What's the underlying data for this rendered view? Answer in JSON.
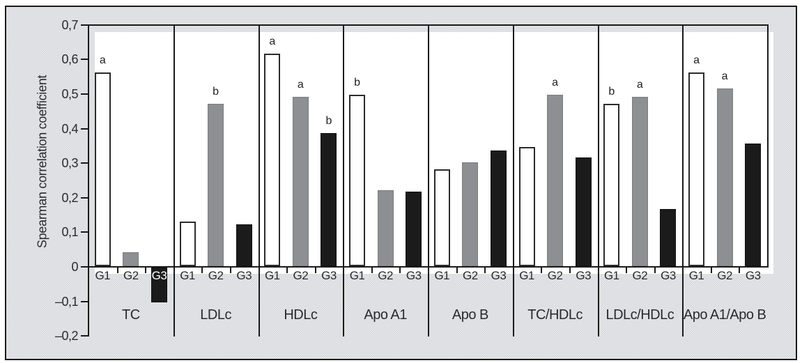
{
  "figure": {
    "kind": "grouped-bar-figure",
    "background_hex": "#d6d8db",
    "plot_background_hex": "#ffffff",
    "line_hex": "#1a1a1a"
  },
  "chart_data": {
    "type": "bar",
    "title": "",
    "xlabel": "",
    "ylabel": "Spearman correlation coefficient",
    "ylim": [
      -0.2,
      0.7
    ],
    "ytick_step": 0.1,
    "yticks": [
      0.7,
      0.6,
      0.5,
      0.4,
      0.3,
      0.2,
      0.1,
      0,
      -0.1,
      -0.2
    ],
    "ytick_labels": [
      "0,7",
      "0,6",
      "0,5",
      "0,4",
      "0,3",
      "0,2",
      "0,1",
      "0",
      "–0,1",
      "–0,2"
    ],
    "decimal_separator": ",",
    "grid": "off",
    "legend": "none",
    "series_names": [
      "G1",
      "G2",
      "G3"
    ],
    "series_colors": [
      {
        "name": "G1",
        "color": "#ffffff"
      },
      {
        "name": "G2",
        "color": "#8e8f93"
      },
      {
        "name": "G3",
        "color": "#1b1b1b"
      }
    ],
    "annotation_meaning": "significance letters shown above some bars",
    "groups": [
      {
        "label": "TC",
        "values": [
          0.56,
          0.04,
          -0.1
        ],
        "letters": [
          "a",
          "",
          ""
        ]
      },
      {
        "label": "LDLc",
        "values": [
          0.13,
          0.47,
          0.12
        ],
        "letters": [
          "",
          "b",
          ""
        ]
      },
      {
        "label": "HDLc",
        "values": [
          0.615,
          0.49,
          0.385
        ],
        "letters": [
          "a",
          "a",
          "b"
        ]
      },
      {
        "label": "Apo A1",
        "values": [
          0.495,
          0.22,
          0.215
        ],
        "letters": [
          "b",
          "",
          ""
        ]
      },
      {
        "label": "Apo B",
        "values": [
          0.28,
          0.3,
          0.335
        ],
        "letters": [
          "",
          "",
          ""
        ]
      },
      {
        "label": "TC/HDLc",
        "values": [
          0.345,
          0.495,
          0.315
        ],
        "letters": [
          "",
          "a",
          ""
        ]
      },
      {
        "label": "LDLc/HDLc",
        "values": [
          0.47,
          0.49,
          0.165
        ],
        "letters": [
          "b",
          "a",
          ""
        ]
      },
      {
        "label": "Apo A1/Apo B",
        "values": [
          0.56,
          0.515,
          0.355
        ],
        "letters": [
          "a",
          "a",
          ""
        ]
      }
    ]
  }
}
